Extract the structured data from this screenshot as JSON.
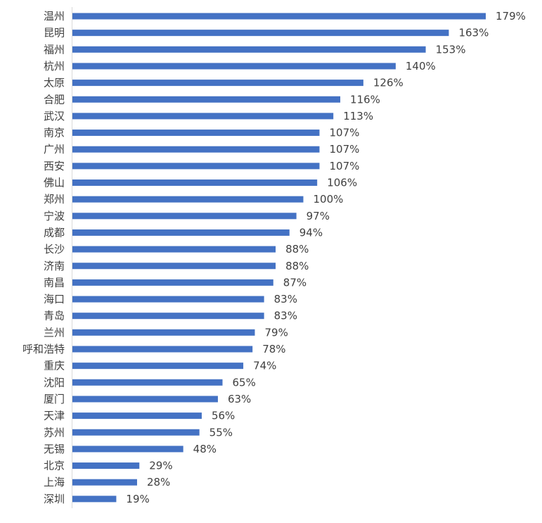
{
  "chart_data": {
    "type": "bar",
    "orientation": "horizontal",
    "title": "",
    "xlabel": "",
    "ylabel": "",
    "value_suffix": "%",
    "xlim": [
      0,
      185
    ],
    "grid": false,
    "legend": "none",
    "bar_color": "#4472c4",
    "categories": [
      "温州",
      "昆明",
      "福州",
      "杭州",
      "太原",
      "合肥",
      "武汉",
      "南京",
      "广州",
      "西安",
      "佛山",
      "郑州",
      "宁波",
      "成都",
      "长沙",
      "济南",
      "南昌",
      "海口",
      "青岛",
      "兰州",
      "呼和浩特",
      "重庆",
      "沈阳",
      "厦门",
      "天津",
      "苏州",
      "无锡",
      "北京",
      "上海",
      "深圳"
    ],
    "values": [
      179,
      163,
      153,
      140,
      126,
      116,
      113,
      107,
      107,
      107,
      106,
      100,
      97,
      94,
      88,
      88,
      87,
      83,
      83,
      79,
      78,
      74,
      65,
      63,
      56,
      55,
      48,
      29,
      28,
      19
    ],
    "value_labels": [
      "179%",
      "163%",
      "153%",
      "140%",
      "126%",
      "116%",
      "113%",
      "107%",
      "107%",
      "107%",
      "106%",
      "100%",
      "97%",
      "94%",
      "88%",
      "88%",
      "87%",
      "83%",
      "83%",
      "79%",
      "78%",
      "74%",
      "65%",
      "63%",
      "56%",
      "55%",
      "48%",
      "29%",
      "28%",
      "19%"
    ]
  }
}
